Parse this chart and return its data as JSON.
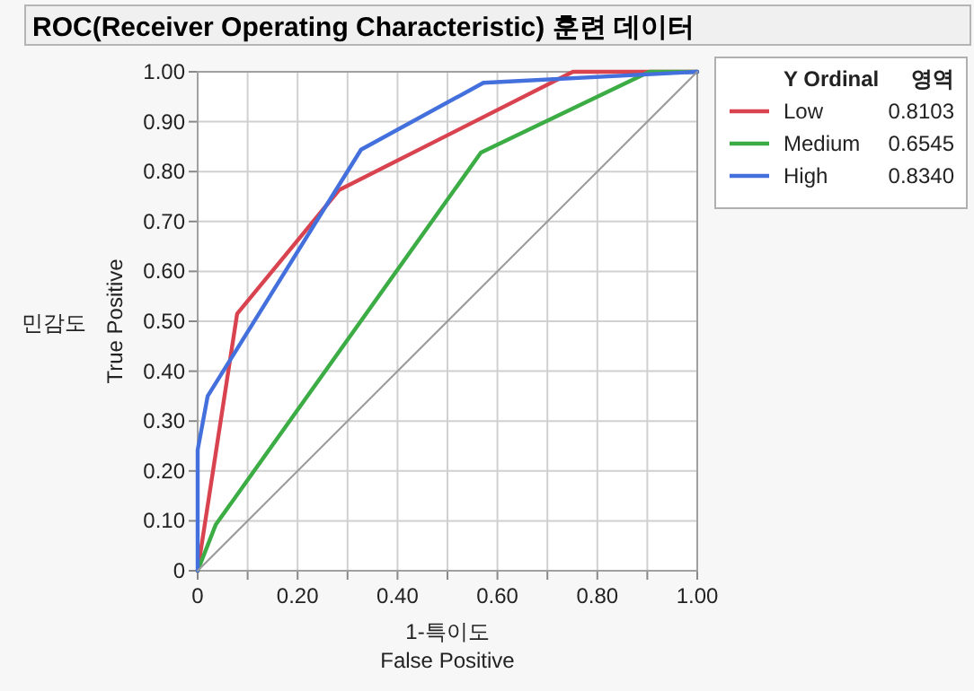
{
  "chart_data": {
    "type": "line",
    "title": "ROC(Receiver Operating Characteristic) 훈련 데이터",
    "xlabel": "1-특이도\nFalse Positive",
    "ylabel": "민감도\nTrue Positive",
    "legend_title": "Y Ordinal",
    "series": [
      {
        "name": "Low",
        "color": "#d9434f",
        "x": [
          0,
          0.079,
          0.283,
          0.751,
          1
        ],
        "values": [
          0,
          0.515,
          0.763,
          1,
          1
        ]
      },
      {
        "name": "Medium",
        "color": "#3cac45",
        "x": [
          0,
          0.036,
          0.567,
          0.904,
          1
        ],
        "values": [
          0,
          0.092,
          0.838,
          1,
          1
        ]
      },
      {
        "name": "High",
        "color": "#4370dc",
        "x": [
          0,
          0,
          0.02,
          0.327,
          0.572,
          1
        ],
        "values": [
          0,
          0.242,
          0.35,
          0.844,
          0.978,
          1
        ]
      },
      {
        "color": "#9a9a9a",
        "x": [
          0,
          1
        ],
        "values": [
          0,
          1
        ]
      }
    ],
    "annotations": [
      "영역",
      "0.8103",
      "0.6545",
      "0.8340"
    ],
    "xlim": [
      0,
      1
    ],
    "ylim": [
      0,
      1
    ],
    "xticks": [
      {
        "value": 0,
        "label": "0"
      },
      {
        "value": 0.1,
        "label": null
      },
      {
        "value": 0.2,
        "label": "0.20"
      },
      {
        "value": 0.3,
        "label": null
      },
      {
        "value": 0.4,
        "label": "0.40"
      },
      {
        "value": 0.5,
        "label": null
      },
      {
        "value": 0.6,
        "label": "0.60"
      },
      {
        "value": 0.7,
        "label": null
      },
      {
        "value": 0.8,
        "label": "0.80"
      },
      {
        "value": 0.9,
        "label": null
      },
      {
        "value": 1,
        "label": "1.00"
      }
    ],
    "yticks": [
      {
        "value": 0,
        "label": "0"
      },
      {
        "value": 0.1,
        "label": "0.10"
      },
      {
        "value": 0.2,
        "label": "0.20"
      },
      {
        "value": 0.3,
        "label": "0.30"
      },
      {
        "value": 0.4,
        "label": "0.40"
      },
      {
        "value": 0.5,
        "label": "0.50"
      },
      {
        "value": 0.6,
        "label": "0.60"
      },
      {
        "value": 0.7,
        "label": "0.70"
      },
      {
        "value": 0.8,
        "label": "0.80"
      },
      {
        "value": 0.9,
        "label": "0.90"
      },
      {
        "value": 1,
        "label": "1.00"
      }
    ],
    "grid": true,
    "legend": "right",
    "marker": "none",
    "line_style": "solid"
  }
}
